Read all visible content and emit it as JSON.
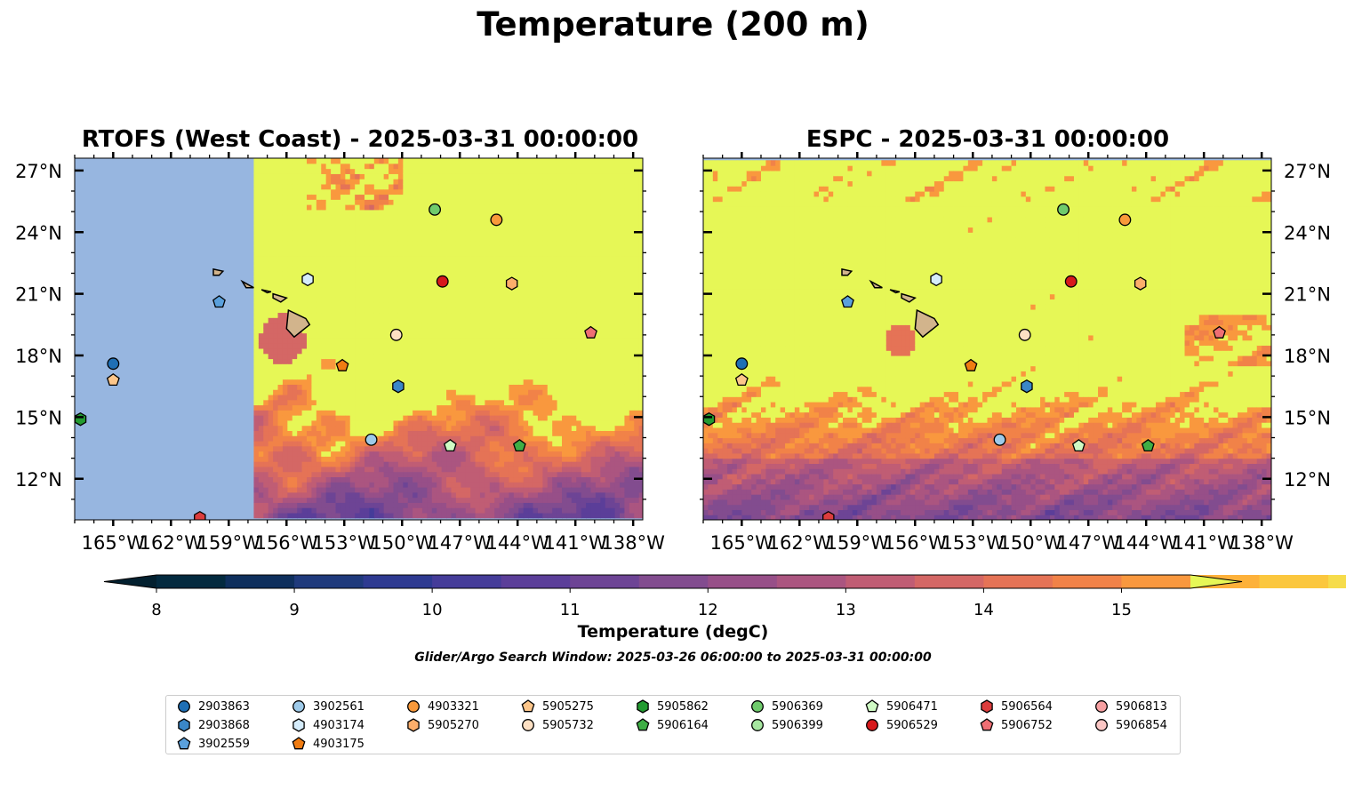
{
  "figure": {
    "suptitle": "Temperature (200 m)",
    "search_window": "Glider/Argo Search Window: 2025-03-26 06:00:00 to 2025-03-31 00:00:00",
    "land_color": "#d2b48c",
    "ocean_mask_color": "#97b6e0",
    "warm_color": "#e6f756"
  },
  "chart_data": [
    {
      "type": "heatmap",
      "title": "RTOFS (West Coast) - 2025-03-31 00:00:00",
      "xlabel": "",
      "ylabel": "",
      "xlim": [
        -167,
        -137.5
      ],
      "ylim": [
        10,
        27.6
      ],
      "x_ticks": [
        -165,
        -162,
        -159,
        -156,
        -153,
        -150,
        -147,
        -144,
        -141,
        -138
      ],
      "x_tick_labels": [
        "165°W",
        "162°W",
        "159°W",
        "156°W",
        "153°W",
        "150°W",
        "147°W",
        "144°W",
        "141°W",
        "138°W"
      ],
      "y_ticks": [
        12,
        15,
        18,
        21,
        24,
        27
      ],
      "y_tick_labels": [
        "12°N",
        "15°N",
        "18°N",
        "21°N",
        "24°N",
        "27°N"
      ],
      "y_axis_side": "left",
      "model_domain_west_lon": -157.7,
      "grid": false,
      "description_level": "temperature field from 8 to 15.5 degC; warm (>15) north of ~16°N, cooler eddies (10–12) in the south"
    },
    {
      "type": "heatmap",
      "title": "ESPC - 2025-03-31 00:00:00",
      "xlabel": "",
      "ylabel": "",
      "xlim": [
        -167,
        -137.5
      ],
      "ylim": [
        10,
        27.6
      ],
      "x_ticks": [
        -165,
        -162,
        -159,
        -156,
        -153,
        -150,
        -147,
        -144,
        -141,
        -138
      ],
      "x_tick_labels": [
        "165°W",
        "162°W",
        "159°W",
        "156°W",
        "153°W",
        "150°W",
        "147°W",
        "144°W",
        "141°W",
        "138°W"
      ],
      "y_ticks": [
        12,
        15,
        18,
        21,
        24,
        27
      ],
      "y_tick_labels": [
        "12°N",
        "15°N",
        "18°N",
        "21°N",
        "24°N",
        "27°N"
      ],
      "y_axis_side": "right",
      "grid": false
    }
  ],
  "colorbar": {
    "label": "Temperature (degC)",
    "min": 8,
    "max": 15.5,
    "step": 0.5,
    "ticks": [
      8,
      9,
      10,
      11,
      12,
      13,
      14,
      15
    ],
    "extend": "both",
    "colors": [
      "#032a3f",
      "#0e2f5d",
      "#1f3a7c",
      "#2e3a91",
      "#453c99",
      "#5b3e99",
      "#6d4495",
      "#824c8f",
      "#974f88",
      "#ab5580",
      "#c05d74",
      "#d46765",
      "#e57356",
      "#f18248",
      "#f9983e",
      "#fdb13a",
      "#fbc73e",
      "#f6dc4b"
    ],
    "under_color": "#03202f",
    "over_color": "#e6f756"
  },
  "floats": [
    {
      "id": "2903863",
      "marker": "circle",
      "color": "#1f6fb5",
      "lon": -165,
      "lat": 17.6
    },
    {
      "id": "2903868",
      "marker": "hexagon",
      "color": "#3a87c8",
      "lon": -150.2,
      "lat": 16.5
    },
    {
      "id": "3902559",
      "marker": "pentagon",
      "color": "#5aa0dc",
      "lon": -159.5,
      "lat": 20.6
    },
    {
      "id": "3902561",
      "marker": "circle",
      "color": "#9ecae9",
      "lon": -151.6,
      "lat": 13.9
    },
    {
      "id": "4903174",
      "marker": "hexagon",
      "color": "#d5ecfb",
      "lon": -154.9,
      "lat": 21.7
    },
    {
      "id": "4903175",
      "marker": "pentagon",
      "color": "#f07c12",
      "lon": -153.1,
      "lat": 17.5
    },
    {
      "id": "4903321",
      "marker": "circle",
      "color": "#f9993a",
      "lon": -145.1,
      "lat": 24.6
    },
    {
      "id": "5905270",
      "marker": "hexagon",
      "color": "#fcae6b",
      "lon": -144.3,
      "lat": 21.5
    },
    {
      "id": "5905275",
      "marker": "pentagon",
      "color": "#fdc68a",
      "lon": -165,
      "lat": 16.8
    },
    {
      "id": "5905732",
      "marker": "circle",
      "color": "#fde0c3",
      "lon": -150.3,
      "lat": 19.0
    },
    {
      "id": "5905862",
      "marker": "hexagon",
      "color": "#239b31",
      "lon": -166.7,
      "lat": 14.9
    },
    {
      "id": "5906164",
      "marker": "pentagon",
      "color": "#3fae45",
      "lon": -143.9,
      "lat": 13.6
    },
    {
      "id": "5906369",
      "marker": "circle",
      "color": "#6fcb6c",
      "lon": -148.3,
      "lat": 25.1
    },
    {
      "id": "5906399",
      "marker": "circle",
      "color": "#a6e6a0",
      "lon": -151.6,
      "lat": 13.9,
      "shown_on_map": false
    },
    {
      "id": "5906471",
      "marker": "pentagon",
      "color": "#cffac4",
      "lon": -147.5,
      "lat": 13.6
    },
    {
      "id": "5906529",
      "marker": "circle",
      "color": "#d7191c",
      "lon": -147.9,
      "lat": 21.6
    },
    {
      "id": "5906564",
      "marker": "hexagon",
      "color": "#dc3d3d",
      "lon": -160.5,
      "lat": 10.1
    },
    {
      "id": "5906752",
      "marker": "pentagon",
      "color": "#ef6f74",
      "lon": -140.2,
      "lat": 19.1
    },
    {
      "id": "5906813",
      "marker": "circle",
      "color": "#f7a0a2",
      "lon": -165,
      "lat": 17.6,
      "shown_on_map": false
    },
    {
      "id": "5906854",
      "marker": "circle",
      "color": "#fbc6c4",
      "lon": -165,
      "lat": 17.6,
      "shown_on_map": false
    }
  ],
  "legend_columns": [
    [
      "2903863",
      "2903868",
      "3902559"
    ],
    [
      "3902561",
      "4903174",
      "4903175"
    ],
    [
      "4903321",
      "5905270"
    ],
    [
      "5905275",
      "5905732"
    ],
    [
      "5905862",
      "5906164"
    ],
    [
      "5906369",
      "5906399"
    ],
    [
      "5906471",
      "5906529"
    ],
    [
      "5906564",
      "5906752"
    ],
    [
      "5906813",
      "5906854"
    ]
  ]
}
